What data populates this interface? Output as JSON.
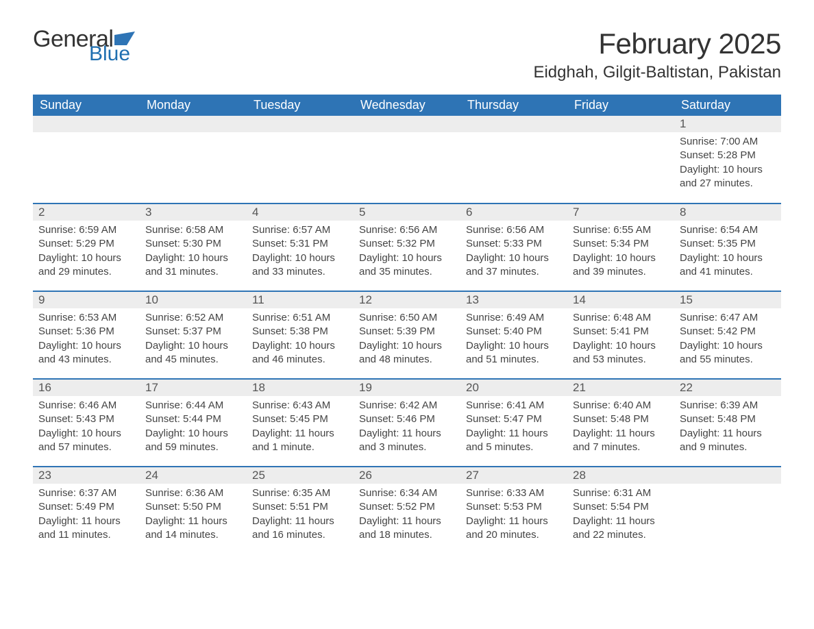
{
  "brand": {
    "word1": "General",
    "word2": "Blue"
  },
  "title": {
    "month": "February 2025",
    "location": "Eidghah, Gilgit-Baltistan, Pakistan"
  },
  "colors": {
    "header_bg": "#2e74b5",
    "header_text": "#ffffff",
    "row_sep": "#2e74b5",
    "daynum_bg": "#ededed",
    "daynum_text": "#555555",
    "body_text": "#444444",
    "brand_blue": "#1f6fb0",
    "brand_dark": "#333333",
    "page_bg": "#ffffff"
  },
  "typography": {
    "month_title_fontsize": 42,
    "location_fontsize": 24,
    "weekday_fontsize": 18,
    "daynum_fontsize": 17,
    "cell_fontsize": 15,
    "font_family": "Segoe UI"
  },
  "layout": {
    "columns": 7,
    "rows": 5,
    "first_day_column": 6
  },
  "weekdays": [
    "Sunday",
    "Monday",
    "Tuesday",
    "Wednesday",
    "Thursday",
    "Friday",
    "Saturday"
  ],
  "days": [
    {
      "n": "1",
      "sunrise": "Sunrise: 7:00 AM",
      "sunset": "Sunset: 5:28 PM",
      "d1": "Daylight: 10 hours",
      "d2": "and 27 minutes."
    },
    {
      "n": "2",
      "sunrise": "Sunrise: 6:59 AM",
      "sunset": "Sunset: 5:29 PM",
      "d1": "Daylight: 10 hours",
      "d2": "and 29 minutes."
    },
    {
      "n": "3",
      "sunrise": "Sunrise: 6:58 AM",
      "sunset": "Sunset: 5:30 PM",
      "d1": "Daylight: 10 hours",
      "d2": "and 31 minutes."
    },
    {
      "n": "4",
      "sunrise": "Sunrise: 6:57 AM",
      "sunset": "Sunset: 5:31 PM",
      "d1": "Daylight: 10 hours",
      "d2": "and 33 minutes."
    },
    {
      "n": "5",
      "sunrise": "Sunrise: 6:56 AM",
      "sunset": "Sunset: 5:32 PM",
      "d1": "Daylight: 10 hours",
      "d2": "and 35 minutes."
    },
    {
      "n": "6",
      "sunrise": "Sunrise: 6:56 AM",
      "sunset": "Sunset: 5:33 PM",
      "d1": "Daylight: 10 hours",
      "d2": "and 37 minutes."
    },
    {
      "n": "7",
      "sunrise": "Sunrise: 6:55 AM",
      "sunset": "Sunset: 5:34 PM",
      "d1": "Daylight: 10 hours",
      "d2": "and 39 minutes."
    },
    {
      "n": "8",
      "sunrise": "Sunrise: 6:54 AM",
      "sunset": "Sunset: 5:35 PM",
      "d1": "Daylight: 10 hours",
      "d2": "and 41 minutes."
    },
    {
      "n": "9",
      "sunrise": "Sunrise: 6:53 AM",
      "sunset": "Sunset: 5:36 PM",
      "d1": "Daylight: 10 hours",
      "d2": "and 43 minutes."
    },
    {
      "n": "10",
      "sunrise": "Sunrise: 6:52 AM",
      "sunset": "Sunset: 5:37 PM",
      "d1": "Daylight: 10 hours",
      "d2": "and 45 minutes."
    },
    {
      "n": "11",
      "sunrise": "Sunrise: 6:51 AM",
      "sunset": "Sunset: 5:38 PM",
      "d1": "Daylight: 10 hours",
      "d2": "and 46 minutes."
    },
    {
      "n": "12",
      "sunrise": "Sunrise: 6:50 AM",
      "sunset": "Sunset: 5:39 PM",
      "d1": "Daylight: 10 hours",
      "d2": "and 48 minutes."
    },
    {
      "n": "13",
      "sunrise": "Sunrise: 6:49 AM",
      "sunset": "Sunset: 5:40 PM",
      "d1": "Daylight: 10 hours",
      "d2": "and 51 minutes."
    },
    {
      "n": "14",
      "sunrise": "Sunrise: 6:48 AM",
      "sunset": "Sunset: 5:41 PM",
      "d1": "Daylight: 10 hours",
      "d2": "and 53 minutes."
    },
    {
      "n": "15",
      "sunrise": "Sunrise: 6:47 AM",
      "sunset": "Sunset: 5:42 PM",
      "d1": "Daylight: 10 hours",
      "d2": "and 55 minutes."
    },
    {
      "n": "16",
      "sunrise": "Sunrise: 6:46 AM",
      "sunset": "Sunset: 5:43 PM",
      "d1": "Daylight: 10 hours",
      "d2": "and 57 minutes."
    },
    {
      "n": "17",
      "sunrise": "Sunrise: 6:44 AM",
      "sunset": "Sunset: 5:44 PM",
      "d1": "Daylight: 10 hours",
      "d2": "and 59 minutes."
    },
    {
      "n": "18",
      "sunrise": "Sunrise: 6:43 AM",
      "sunset": "Sunset: 5:45 PM",
      "d1": "Daylight: 11 hours",
      "d2": "and 1 minute."
    },
    {
      "n": "19",
      "sunrise": "Sunrise: 6:42 AM",
      "sunset": "Sunset: 5:46 PM",
      "d1": "Daylight: 11 hours",
      "d2": "and 3 minutes."
    },
    {
      "n": "20",
      "sunrise": "Sunrise: 6:41 AM",
      "sunset": "Sunset: 5:47 PM",
      "d1": "Daylight: 11 hours",
      "d2": "and 5 minutes."
    },
    {
      "n": "21",
      "sunrise": "Sunrise: 6:40 AM",
      "sunset": "Sunset: 5:48 PM",
      "d1": "Daylight: 11 hours",
      "d2": "and 7 minutes."
    },
    {
      "n": "22",
      "sunrise": "Sunrise: 6:39 AM",
      "sunset": "Sunset: 5:48 PM",
      "d1": "Daylight: 11 hours",
      "d2": "and 9 minutes."
    },
    {
      "n": "23",
      "sunrise": "Sunrise: 6:37 AM",
      "sunset": "Sunset: 5:49 PM",
      "d1": "Daylight: 11 hours",
      "d2": "and 11 minutes."
    },
    {
      "n": "24",
      "sunrise": "Sunrise: 6:36 AM",
      "sunset": "Sunset: 5:50 PM",
      "d1": "Daylight: 11 hours",
      "d2": "and 14 minutes."
    },
    {
      "n": "25",
      "sunrise": "Sunrise: 6:35 AM",
      "sunset": "Sunset: 5:51 PM",
      "d1": "Daylight: 11 hours",
      "d2": "and 16 minutes."
    },
    {
      "n": "26",
      "sunrise": "Sunrise: 6:34 AM",
      "sunset": "Sunset: 5:52 PM",
      "d1": "Daylight: 11 hours",
      "d2": "and 18 minutes."
    },
    {
      "n": "27",
      "sunrise": "Sunrise: 6:33 AM",
      "sunset": "Sunset: 5:53 PM",
      "d1": "Daylight: 11 hours",
      "d2": "and 20 minutes."
    },
    {
      "n": "28",
      "sunrise": "Sunrise: 6:31 AM",
      "sunset": "Sunset: 5:54 PM",
      "d1": "Daylight: 11 hours",
      "d2": "and 22 minutes."
    }
  ]
}
